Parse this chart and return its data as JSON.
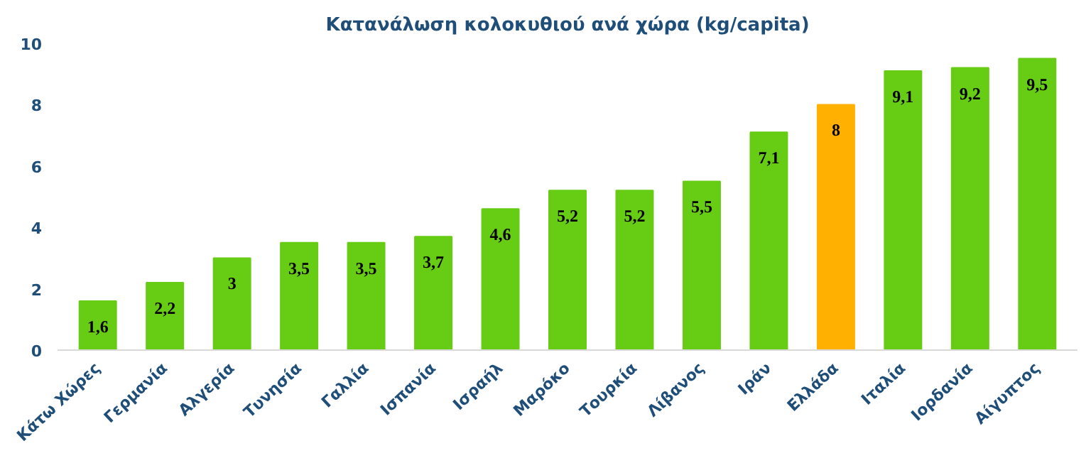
{
  "chart_data": {
    "type": "bar",
    "title": "Κατανάλωση κολοκυθιού ανά χώρα (kg/capita)",
    "categories": [
      "Κάτω Χώρες",
      "Γερμανία",
      "Αλγερία",
      "Τυνησία",
      "Γαλλία",
      "Ισπανία",
      "Ισραήλ",
      "Μαρόκο",
      "Τουρκία",
      "Λίβανος",
      "Ιράν",
      "Ελλάδα",
      "Ιταλία",
      "Ιορδανία",
      "Αίγυπτος"
    ],
    "values": [
      1.6,
      2.2,
      3,
      3.5,
      3.5,
      3.7,
      4.6,
      5.2,
      5.2,
      5.5,
      7.1,
      8,
      9.1,
      9.2,
      9.5
    ],
    "colors": [
      "#66cc14",
      "#66cc14",
      "#66cc14",
      "#66cc14",
      "#66cc14",
      "#66cc14",
      "#66cc14",
      "#66cc14",
      "#66cc14",
      "#66cc14",
      "#66cc14",
      "#ffb000",
      "#66cc14",
      "#66cc14",
      "#66cc14"
    ],
    "value_labels": [
      "1,6",
      "2,2",
      "3",
      "3,5",
      "3,5",
      "3,7",
      "4,6",
      "5,2",
      "5,2",
      "5,5",
      "7,1",
      "8",
      "9,1",
      "9,2",
      "9,5"
    ],
    "ylim": [
      0,
      10
    ],
    "yticks": [
      0,
      2,
      4,
      6,
      8,
      10
    ],
    "grid": false
  }
}
